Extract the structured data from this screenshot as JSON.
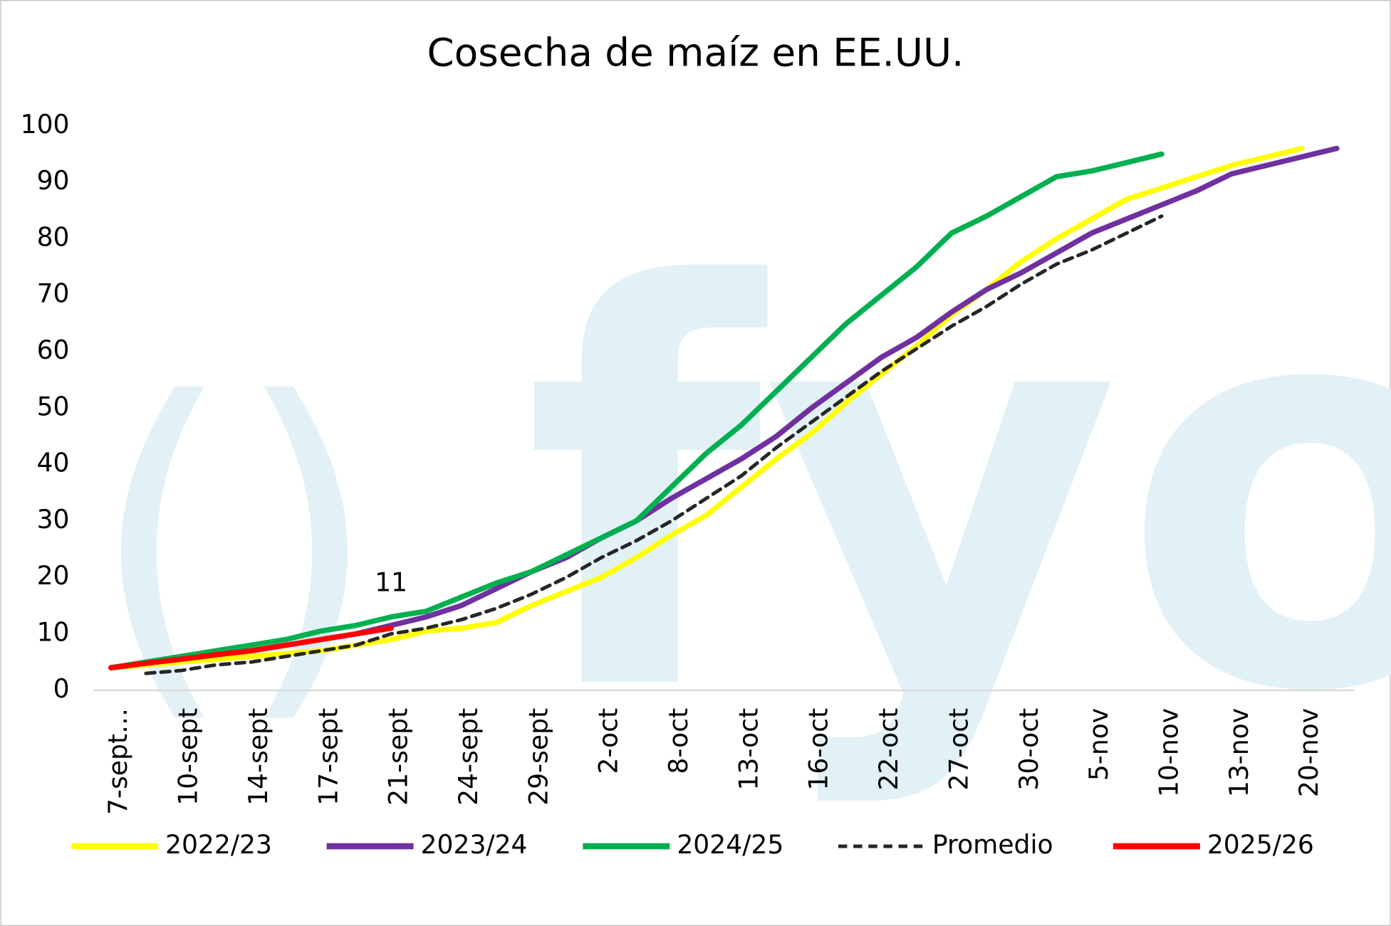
{
  "chart_data": {
    "type": "line",
    "title": "Cosecha de maíz en EE.UU.",
    "categories": [
      "7-sept…",
      null,
      "10-sept",
      null,
      "14-sept",
      null,
      "17-sept",
      null,
      "21-sept",
      null,
      "24-sept",
      null,
      "29-sept",
      null,
      "2-oct",
      null,
      "8-oct",
      null,
      "13-oct",
      null,
      "16-oct",
      null,
      "22-oct",
      null,
      "27-oct",
      null,
      "30-oct",
      null,
      "5-nov",
      null,
      "10-nov",
      null,
      "13-nov",
      null,
      "20-nov",
      null
    ],
    "ylim": [
      0,
      100
    ],
    "yticks": [
      0,
      10,
      20,
      30,
      40,
      50,
      60,
      70,
      80,
      90,
      100
    ],
    "grid": false,
    "legend": "bottom",
    "series": [
      {
        "name": "2022/23",
        "color": "#ffff00",
        "values": [
          4,
          4.5,
          5,
          5.5,
          6,
          6.5,
          7,
          8,
          9,
          10.5,
          11,
          12,
          15,
          17.5,
          20,
          23.5,
          27.5,
          31,
          36,
          41,
          45.5,
          51,
          56,
          61,
          66.5,
          71,
          76,
          80,
          83.5,
          87,
          89,
          91,
          93,
          94.5,
          96,
          null
        ]
      },
      {
        "name": "2023/24",
        "color": "#7030a0",
        "values": [
          4,
          4.8,
          5.5,
          6.3,
          7,
          8,
          9,
          10,
          11.5,
          13,
          15,
          18,
          21,
          23.5,
          27,
          30,
          34,
          37.5,
          41,
          45,
          50,
          54.5,
          59,
          62.5,
          67,
          71,
          74,
          77.5,
          81,
          83.5,
          86,
          88.5,
          91.5,
          93,
          94.5,
          96
        ]
      },
      {
        "name": "2024/25",
        "color": "#00b050",
        "values": [
          4,
          5,
          6,
          7,
          8,
          9,
          10.5,
          11.5,
          13,
          14,
          16.5,
          19,
          21,
          24,
          27,
          30,
          36,
          42,
          47,
          53,
          59,
          65,
          70,
          75,
          81,
          84,
          87.5,
          91,
          92,
          93.5,
          95,
          null,
          null,
          null,
          null,
          null
        ]
      },
      {
        "name": "Promedio",
        "color": "#262626",
        "dash": true,
        "values": [
          null,
          3,
          3.5,
          4.5,
          5,
          6,
          7,
          8,
          10,
          11,
          12.5,
          14.5,
          17,
          20,
          23.5,
          26.5,
          30,
          34,
          38,
          43,
          47.5,
          52,
          56.5,
          60.5,
          64.5,
          68,
          72,
          75.5,
          78,
          81,
          84,
          null,
          null,
          null,
          null,
          null
        ]
      },
      {
        "name": "2025/26",
        "color": "#ff0000",
        "values": [
          4,
          4.8,
          5.5,
          6.3,
          7,
          8,
          9,
          10,
          11,
          null,
          null,
          null,
          null,
          null,
          null,
          null,
          null,
          null,
          null,
          null,
          null,
          null,
          null,
          null,
          null,
          null,
          null,
          null,
          null,
          null,
          null,
          null,
          null,
          null,
          null,
          null
        ],
        "value_labels": [
          null,
          null,
          null,
          null,
          null,
          null,
          null,
          null,
          "11",
          null,
          null,
          null,
          null,
          null,
          null,
          null,
          null,
          null,
          null,
          null,
          null,
          null,
          null,
          null,
          null,
          null,
          null,
          null,
          null,
          null,
          null,
          null,
          null,
          null,
          null,
          null
        ]
      }
    ]
  }
}
